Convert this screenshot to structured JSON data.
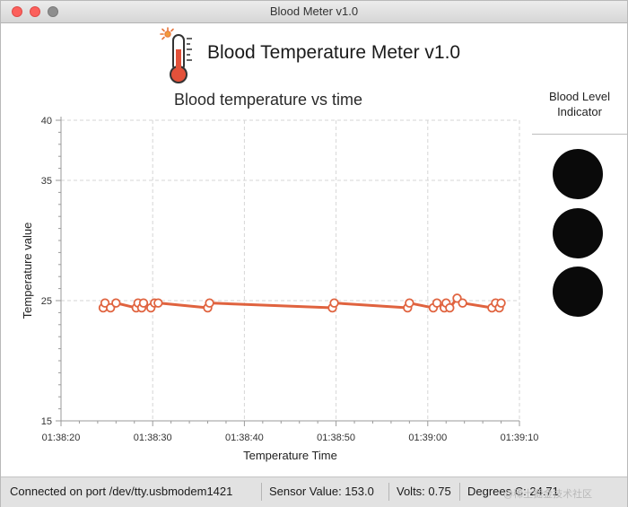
{
  "window": {
    "title": "Blood Meter v1.0"
  },
  "header": {
    "title": "Blood Temperature Meter v1.0",
    "logo_icon": "thermometer-icon"
  },
  "indicator": {
    "title_line1": "Blood Level",
    "title_line2": "Indicator",
    "lights": [
      {
        "name": "light-1",
        "color": "#0a0a0a"
      },
      {
        "name": "light-2",
        "color": "#0a0a0a"
      },
      {
        "name": "light-3",
        "color": "#0a0a0a"
      }
    ]
  },
  "status": {
    "connection": "Connected on port /dev/tty.usbmodem1421",
    "sensor": "Sensor Value: 153.0",
    "volts": "Volts: 0.75",
    "degrees": "Degrees C: 24.71"
  },
  "watermark": "@稀土掘金技术社区",
  "chart_data": {
    "type": "line",
    "title": "Blood temperature vs time",
    "xlabel": "Temperature Time",
    "ylabel": "Temperature value",
    "xlim": [
      "01:38:20",
      "01:39:10"
    ],
    "ylim": [
      15,
      40
    ],
    "x_ticks": [
      "01:38:20",
      "01:38:30",
      "01:38:40",
      "01:38:50",
      "01:39:00",
      "01:39:10"
    ],
    "y_ticks": [
      15,
      25,
      35,
      40
    ],
    "grid": true,
    "line_color": "#e0633f",
    "series": [
      {
        "points": [
          {
            "x": "01:38:24.6",
            "y": 24.4
          },
          {
            "x": "01:38:24.8",
            "y": 24.8
          },
          {
            "x": "01:38:25.4",
            "y": 24.4
          },
          {
            "x": "01:38:26.0",
            "y": 24.8
          },
          {
            "x": "01:38:28.2",
            "y": 24.4
          },
          {
            "x": "01:38:28.4",
            "y": 24.8
          },
          {
            "x": "01:38:28.8",
            "y": 24.4
          },
          {
            "x": "01:38:29.0",
            "y": 24.8
          },
          {
            "x": "01:38:29.8",
            "y": 24.4
          },
          {
            "x": "01:38:30.2",
            "y": 24.8
          },
          {
            "x": "01:38:30.6",
            "y": 24.8
          },
          {
            "x": "01:38:36.0",
            "y": 24.4
          },
          {
            "x": "01:38:36.2",
            "y": 24.8
          },
          {
            "x": "01:38:49.6",
            "y": 24.4
          },
          {
            "x": "01:38:49.8",
            "y": 24.8
          },
          {
            "x": "01:38:57.8",
            "y": 24.4
          },
          {
            "x": "01:38:58.0",
            "y": 24.8
          },
          {
            "x": "01:39:00.6",
            "y": 24.4
          },
          {
            "x": "01:39:01.0",
            "y": 24.8
          },
          {
            "x": "01:39:01.8",
            "y": 24.4
          },
          {
            "x": "01:39:02.0",
            "y": 24.8
          },
          {
            "x": "01:39:02.4",
            "y": 24.4
          },
          {
            "x": "01:39:03.2",
            "y": 25.2
          },
          {
            "x": "01:39:03.8",
            "y": 24.8
          },
          {
            "x": "01:39:07.0",
            "y": 24.4
          },
          {
            "x": "01:39:07.4",
            "y": 24.8
          },
          {
            "x": "01:39:07.8",
            "y": 24.4
          },
          {
            "x": "01:39:08.0",
            "y": 24.8
          }
        ]
      }
    ]
  }
}
